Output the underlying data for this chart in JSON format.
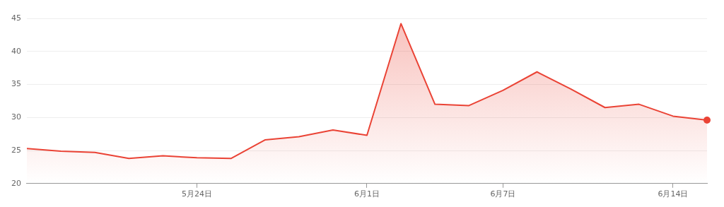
{
  "chart_data": {
    "type": "area",
    "categories": [
      null,
      null,
      null,
      null,
      null,
      "5月24日",
      null,
      null,
      null,
      null,
      "6月1日",
      null,
      null,
      null,
      "6月7日",
      null,
      null,
      null,
      null,
      "6月14日",
      null
    ],
    "series": [
      {
        "color": "#ea4335",
        "values": [
          25.3,
          24.9,
          24.7,
          23.8,
          24.2,
          23.9,
          23.8,
          26.6,
          27.1,
          28.1,
          27.3,
          44.2,
          32.0,
          31.8,
          34.1,
          36.9,
          34.3,
          31.5,
          32.0,
          30.2,
          29.6
        ]
      }
    ],
    "ylim": [
      20,
      45
    ],
    "yticks": [
      20,
      25,
      30,
      35,
      40,
      45
    ],
    "grid": "y",
    "legend": false
  }
}
